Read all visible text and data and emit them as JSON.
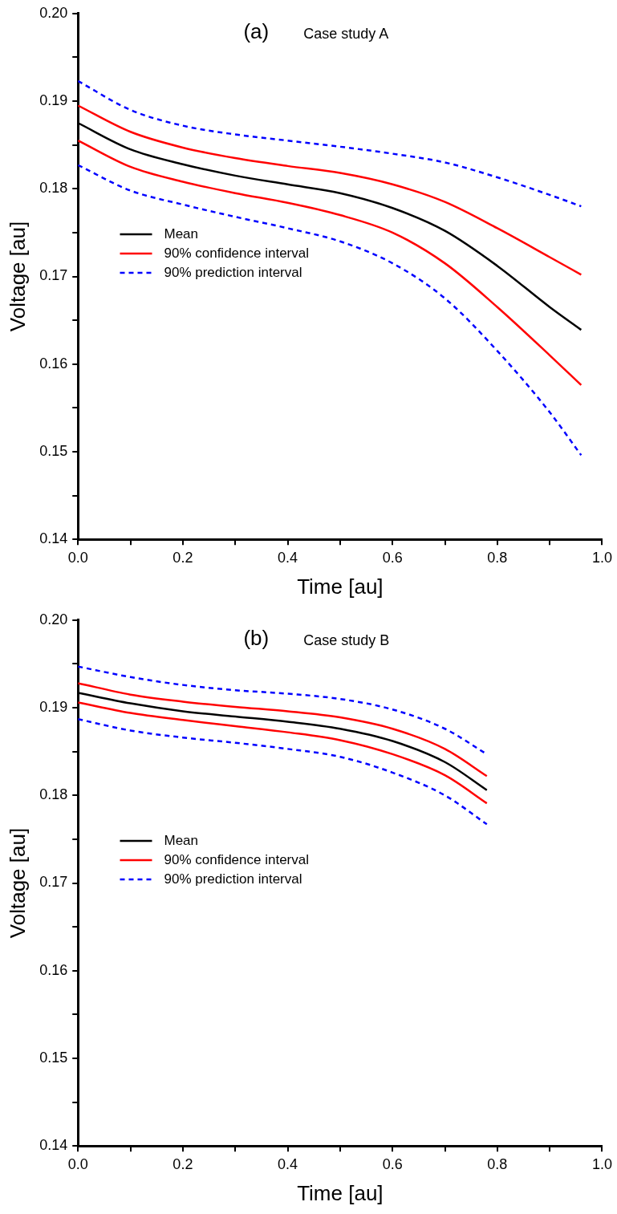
{
  "chart_data": [
    {
      "type": "line",
      "title": "(a)",
      "annotations": [
        "Case study A"
      ],
      "xlabel": "Time [au]",
      "ylabel": "Voltage [au]",
      "xlim": [
        0,
        1
      ],
      "ylim": [
        0.14,
        0.2
      ],
      "xticks": [
        {
          "value": 0,
          "label": "0.0"
        },
        {
          "value": 0.1,
          "label": null
        },
        0.2,
        {
          "value": 0.3,
          "label": null
        },
        0.4,
        {
          "value": 0.5,
          "label": null
        },
        0.6,
        {
          "value": 0.7,
          "label": null
        },
        0.8,
        {
          "value": 0.9,
          "label": null
        },
        {
          "value": 1,
          "label": "1.0"
        }
      ],
      "yticks": [
        0.14,
        {
          "value": 0.145,
          "label": null
        },
        0.15,
        {
          "value": 0.155,
          "label": null
        },
        0.16,
        {
          "value": 0.165,
          "label": null
        },
        0.17,
        {
          "value": 0.175,
          "label": null
        },
        0.18,
        {
          "value": 0.185,
          "label": null
        },
        0.19,
        {
          "value": 0.195,
          "label": null
        },
        {
          "value": 0.2,
          "label": "0.20"
        }
      ],
      "x": [
        0,
        0.1,
        0.2,
        0.3,
        0.4,
        0.5,
        0.6,
        0.7,
        0.8,
        0.9,
        0.96
      ],
      "grid": false,
      "legend": "left",
      "marker": "none",
      "series": [
        {
          "name": "Mean",
          "color": "#000000",
          "line_style": "solid",
          "values": [
            0.1875,
            0.1845,
            0.1828,
            0.1815,
            0.1805,
            0.1795,
            0.1778,
            0.1752,
            0.1712,
            0.1665,
            0.1639
          ]
        },
        {
          "name": "90% confidence interval",
          "color": "#ff0000",
          "line_style": "solid",
          "values": [
            0.1895,
            0.1865,
            0.1847,
            0.1835,
            0.1826,
            0.1818,
            0.1805,
            0.1785,
            0.1755,
            0.1722,
            0.1702
          ]
        },
        {
          "color": "#ff0000",
          "line_style": "solid",
          "values": [
            0.1855,
            0.1825,
            0.1808,
            0.1795,
            0.1784,
            0.177,
            0.175,
            0.1715,
            0.1665,
            0.161,
            0.1576
          ]
        },
        {
          "name": "90% prediction interval",
          "color": "#0000ff",
          "line_style": "dashed",
          "values": [
            0.1923,
            0.189,
            0.1872,
            0.1862,
            0.1855,
            0.1848,
            0.184,
            0.183,
            0.1813,
            0.1793,
            0.178
          ]
        },
        {
          "color": "#0000ff",
          "line_style": "dashed",
          "values": [
            0.1827,
            0.1798,
            0.1782,
            0.1768,
            0.1755,
            0.174,
            0.1715,
            0.1675,
            0.1615,
            0.1545,
            0.1496
          ]
        }
      ]
    },
    {
      "type": "line",
      "title": "(b)",
      "annotations": [
        "Case study B"
      ],
      "xlabel": "Time [au]",
      "ylabel": "Voltage [au]",
      "xlim": [
        0,
        1
      ],
      "ylim": [
        0.14,
        0.2
      ],
      "xticks": [
        {
          "value": 0,
          "label": "0.0"
        },
        {
          "value": 0.1,
          "label": null
        },
        0.2,
        {
          "value": 0.3,
          "label": null
        },
        0.4,
        {
          "value": 0.5,
          "label": null
        },
        0.6,
        {
          "value": 0.7,
          "label": null
        },
        0.8,
        {
          "value": 0.9,
          "label": null
        },
        {
          "value": 1,
          "label": "1.0"
        }
      ],
      "yticks": [
        0.14,
        {
          "value": 0.145,
          "label": null
        },
        0.15,
        {
          "value": 0.155,
          "label": null
        },
        0.16,
        {
          "value": 0.165,
          "label": null
        },
        0.17,
        {
          "value": 0.175,
          "label": null
        },
        0.18,
        {
          "value": 0.185,
          "label": null
        },
        0.19,
        {
          "value": 0.195,
          "label": null
        },
        {
          "value": 0.2,
          "label": "0.20"
        }
      ],
      "x": [
        0,
        0.1,
        0.2,
        0.3,
        0.4,
        0.5,
        0.6,
        0.7,
        0.78
      ],
      "grid": false,
      "legend": "left",
      "marker": "none",
      "series": [
        {
          "name": "Mean",
          "color": "#000000",
          "line_style": "solid",
          "values": [
            0.1917,
            0.1905,
            0.1896,
            0.189,
            0.1884,
            0.1876,
            0.1862,
            0.1838,
            0.1806
          ]
        },
        {
          "name": "90% confidence interval",
          "color": "#ff0000",
          "line_style": "solid",
          "values": [
            0.1928,
            0.1915,
            0.1907,
            0.1901,
            0.1896,
            0.1889,
            0.1876,
            0.1853,
            0.1822
          ]
        },
        {
          "color": "#ff0000",
          "line_style": "solid",
          "values": [
            0.1906,
            0.1894,
            0.1886,
            0.1879,
            0.1872,
            0.1863,
            0.1847,
            0.1823,
            0.1791
          ]
        },
        {
          "name": "90% prediction interval",
          "color": "#0000ff",
          "line_style": "dashed",
          "values": [
            0.1947,
            0.1935,
            0.1926,
            0.192,
            0.1916,
            0.191,
            0.1898,
            0.1876,
            0.1847
          ]
        },
        {
          "color": "#0000ff",
          "line_style": "dashed",
          "values": [
            0.1887,
            0.1874,
            0.1866,
            0.186,
            0.1853,
            0.1844,
            0.1826,
            0.18,
            0.1767
          ]
        }
      ]
    }
  ]
}
